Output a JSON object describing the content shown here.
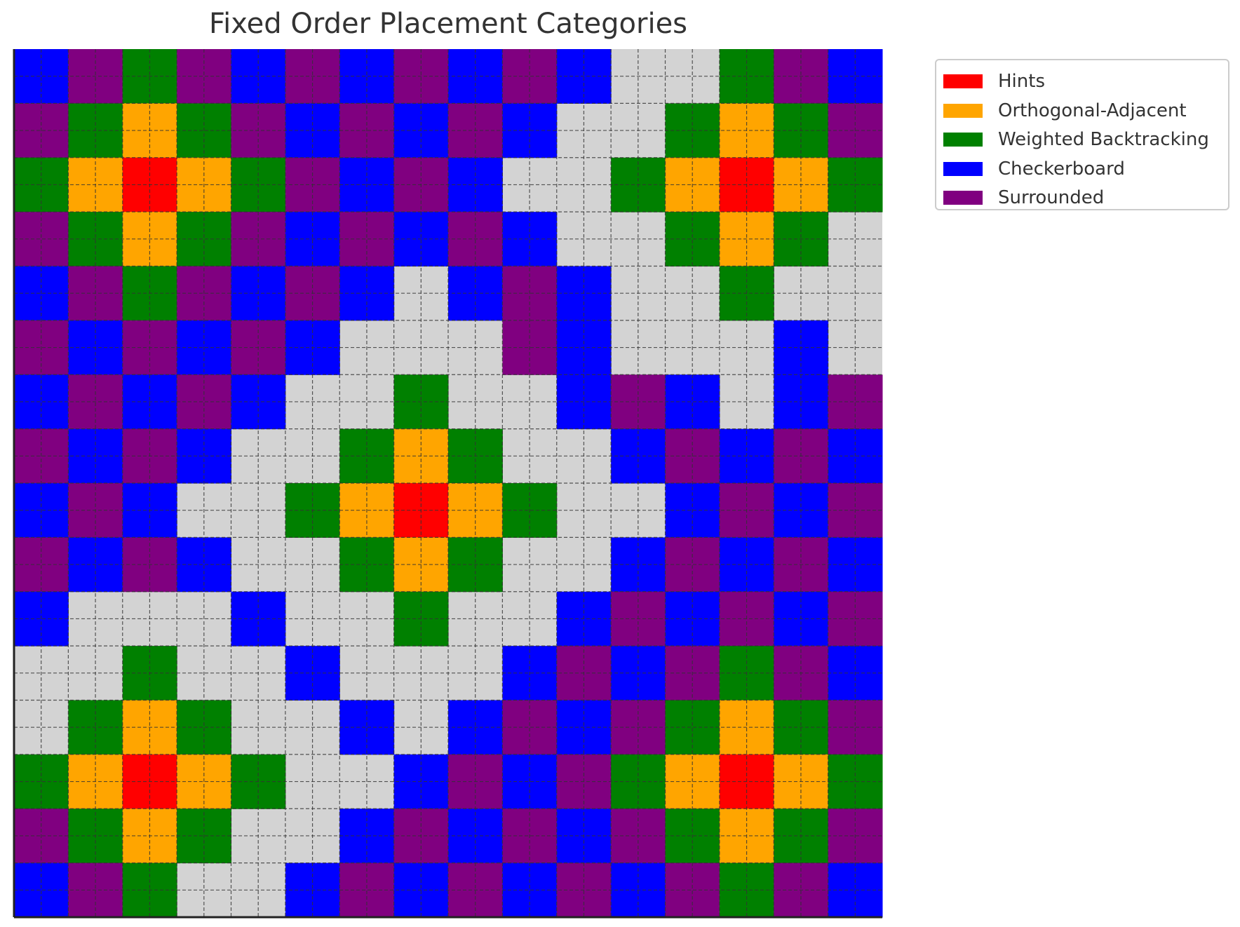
{
  "chart_data": {
    "type": "heatmap",
    "title": "Fixed Order Placement Categories",
    "xlabel": "",
    "ylabel": "",
    "grid": true,
    "legend_position": "outside-top-right",
    "background_color": "#d3d3d3",
    "categories": [
      {
        "key": "H",
        "name": "Hints",
        "color": "#ff0000"
      },
      {
        "key": "O",
        "name": "Orthogonal-Adjacent",
        "color": "#ffa500"
      },
      {
        "key": "W",
        "name": "Weighted Backtracking",
        "color": "#008000"
      },
      {
        "key": "C",
        "name": "Checkerboard",
        "color": "#0000ff"
      },
      {
        "key": "S",
        "name": "Surrounded",
        "color": "#800080"
      }
    ],
    "rows": [
      "CSWSCSCSCSC..WSC",
      "SWOWSCSCSC..WOWS",
      "WOHOWSCSC..WOHOW",
      "SWOWSCSCSC..WOW.",
      "CSWSCSC.CSC..W..",
      "SCSCSC...SC...C.",
      "CSCSC..W..CSC.CS",
      "SCSC..WOW..CSCSC",
      "CSC..WOHOW..CSCS",
      "SCSC..WOW..CSCSC",
      "C...C..W..CSCSCS",
      "..W..C...CSCSWSC",
      ".WOW..C.CSCSWOWS",
      "WOHOW..CSCSWOHOW",
      "SWOW..CSCSCSWOWS",
      "CSW..CSCSCSCSWSC"
    ]
  }
}
